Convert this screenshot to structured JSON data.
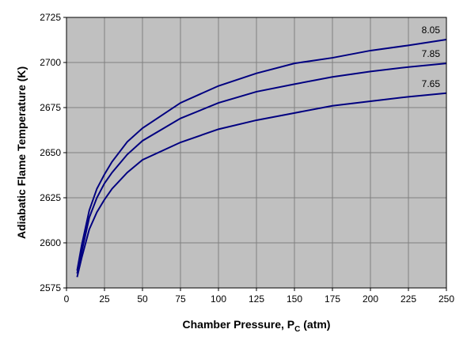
{
  "chart_data": {
    "type": "line",
    "xlabel": {
      "text": "Chamber Pressure, P",
      "sub": "C",
      "after": " (atm)"
    },
    "ylabel": "Adiabatic Flame Temperature (K)",
    "x": [
      7,
      10,
      15,
      20,
      25,
      30,
      40,
      50,
      75,
      100,
      125,
      150,
      175,
      200,
      225,
      250
    ],
    "series": [
      {
        "name": "8.05",
        "color": "#000080",
        "values": [
          2584.6,
          2598.7,
          2618,
          2630,
          2638,
          2645,
          2656,
          2663.6,
          2677.6,
          2687,
          2694,
          2699.5,
          2702.6,
          2706.6,
          2709.5,
          2712.7
        ]
      },
      {
        "name": "7.85",
        "color": "#000080",
        "values": [
          2583,
          2595,
          2614,
          2625,
          2633,
          2639,
          2649,
          2656.6,
          2669,
          2677.6,
          2683.8,
          2688,
          2692,
          2695,
          2697.5,
          2699.5
        ]
      },
      {
        "name": "7.65",
        "color": "#000080",
        "values": [
          2581,
          2591.7,
          2607.5,
          2617,
          2624,
          2630,
          2639,
          2646,
          2655.7,
          2663,
          2668,
          2672,
          2676,
          2678.5,
          2681,
          2683
        ]
      }
    ],
    "xlim": [
      0,
      250
    ],
    "xticks": [
      0,
      25,
      50,
      75,
      100,
      125,
      150,
      175,
      200,
      225,
      250
    ],
    "ylim": [
      2575,
      2725
    ],
    "yticks": [
      2575,
      2600,
      2625,
      2650,
      2675,
      2700,
      2725
    ],
    "grid": true,
    "plot_background": "#c0c0c0"
  }
}
